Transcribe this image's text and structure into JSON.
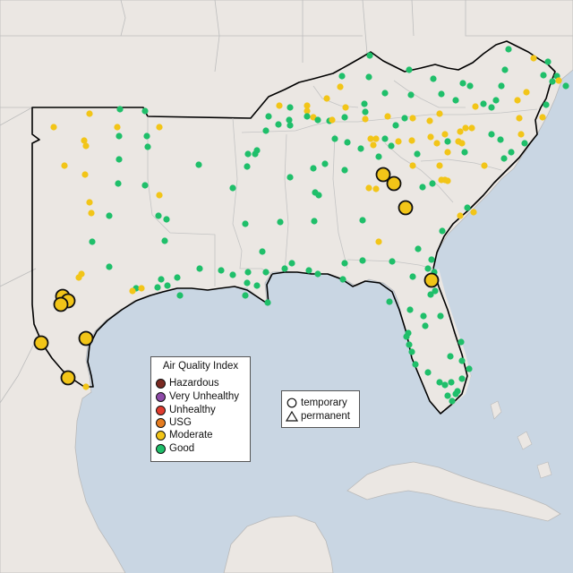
{
  "map": {
    "aqi_colors": {
      "Good": "#1fbf6a",
      "Moderate": "#f2c518",
      "USG": "#e57c20",
      "Unhealthy": "#e03b2e",
      "Very Unhealthy": "#8e4aa8",
      "Hazardous": "#7a2a22"
    },
    "land_color": "#ebe7e3",
    "water_color": "#c9d6e3",
    "region_outline_color": "#000000"
  },
  "legend": {
    "title": "Air Quality Index",
    "items": [
      {
        "label": "Hazardous",
        "color": "#7a2a22"
      },
      {
        "label": "Very Unhealthy",
        "color": "#8e4aa8"
      },
      {
        "label": "Unhealthy",
        "color": "#e03b2e"
      },
      {
        "label": "USG",
        "color": "#e57c20"
      },
      {
        "label": "Moderate",
        "color": "#f2c518"
      },
      {
        "label": "Good",
        "color": "#1fbf6a"
      }
    ]
  },
  "monitor_type_legend": {
    "items": [
      {
        "label": "temporary",
        "symbol": "circle"
      },
      {
        "label": "permanent",
        "symbol": "triangle"
      }
    ]
  }
}
